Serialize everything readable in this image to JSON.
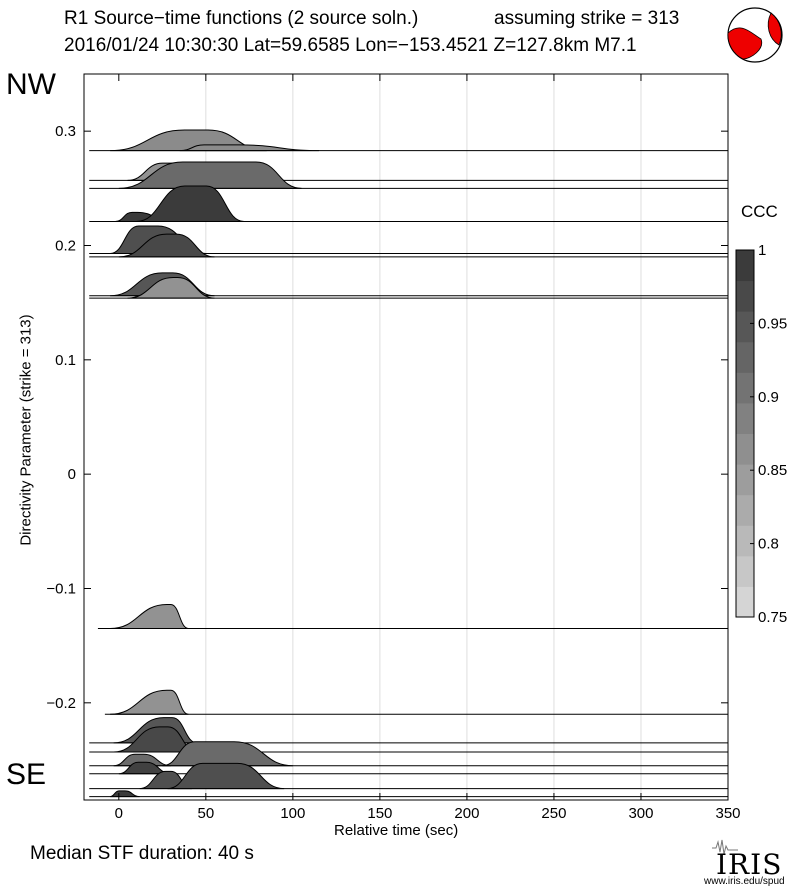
{
  "header": {
    "title": "R1 Source−time functions (2 source soln.)",
    "strike": "assuming strike = 313",
    "subtitle": "2016/01/24 10:30:30  Lat=59.6585 Lon=−153.4521  Z=127.8km  M7.1"
  },
  "labels": {
    "nw": "NW",
    "se": "SE",
    "median": "Median STF duration: 40 s"
  },
  "logo": {
    "name": "IRIS",
    "url": "www.iris.edu/spud"
  },
  "colorbar": {
    "title": "CCC",
    "ticks": [
      "1",
      "0.95",
      "0.9",
      "0.85",
      "0.8",
      "0.75"
    ],
    "vmin": 0.75,
    "vmax": 1.0,
    "levels": 12
  },
  "chart_data": {
    "type": "area",
    "title": "R1 Source−time functions (2 source soln.)",
    "xlabel": "Relative time (sec)",
    "ylabel": "Directivity Parameter (strike = 313)",
    "xlim": [
      -20,
      350
    ],
    "ylim": [
      -0.285,
      0.35
    ],
    "xticks": [
      0,
      50,
      100,
      150,
      200,
      250,
      300,
      350
    ],
    "yticks": [
      0.3,
      0.2,
      0.1,
      0,
      -0.1,
      -0.2
    ],
    "ytick_labels": [
      "0.3",
      "0.2",
      "0.1",
      "0",
      "−0.1",
      "−0.2"
    ],
    "grid_x": true,
    "traces": [
      {
        "y": 0.283,
        "x0": -17,
        "ccc": 0.87,
        "pulses": [
          {
            "t0": -5,
            "t1": 85,
            "h": 0.018,
            "peak": 0.55,
            "flat": 0.15
          },
          {
            "t0": 35,
            "t1": 115,
            "h": 0.005,
            "peak": 0.3,
            "flat": 0.25
          }
        ]
      },
      {
        "y": 0.257,
        "x0": -17,
        "ccc": 0.86,
        "pulses": [
          {
            "t0": 5,
            "t1": 95,
            "h": 0.015,
            "peak": 0.35,
            "flat": 0.25
          }
        ]
      },
      {
        "y": 0.25,
        "x0": -17,
        "ccc": 0.92,
        "pulses": [
          {
            "t0": 0,
            "t1": 105,
            "h": 0.023,
            "peak": 0.55,
            "flat": 0.4
          }
        ]
      },
      {
        "y": 0.221,
        "x0": -17,
        "ccc": 0.99,
        "pulses": [
          {
            "t0": -2,
            "t1": 30,
            "h": 0.008,
            "peak": 0.35,
            "flat": 0.1
          },
          {
            "t0": 10,
            "t1": 72,
            "h": 0.031,
            "peak": 0.55,
            "flat": 0.2
          }
        ]
      },
      {
        "y": 0.193,
        "x0": -17,
        "ccc": 0.96,
        "pulses": [
          {
            "t0": -5,
            "t1": 50,
            "h": 0.024,
            "peak": 0.4,
            "flat": 0.2
          }
        ]
      },
      {
        "y": 0.19,
        "x0": -17,
        "ccc": 0.97,
        "pulses": [
          {
            "t0": 0,
            "t1": 55,
            "h": 0.02,
            "peak": 0.55,
            "flat": 0.1
          }
        ]
      },
      {
        "y": 0.156,
        "x0": -17,
        "ccc": 0.95,
        "pulses": [
          {
            "t0": -5,
            "t1": 55,
            "h": 0.02,
            "peak": 0.55,
            "flat": 0.1
          }
        ]
      },
      {
        "y": 0.154,
        "x0": -17,
        "ccc": 0.86,
        "pulses": [
          {
            "t0": 5,
            "t1": 55,
            "h": 0.018,
            "peak": 0.55,
            "flat": 0.05
          }
        ]
      },
      {
        "y": -0.135,
        "x0": -12,
        "ccc": 0.86,
        "pulses": [
          {
            "t0": -5,
            "t1": 40,
            "h": 0.021,
            "peak": 0.75,
            "flat": 0.05
          }
        ]
      },
      {
        "y": -0.21,
        "x0": -8,
        "ccc": 0.86,
        "pulses": [
          {
            "t0": -5,
            "t1": 40,
            "h": 0.021,
            "peak": 0.75,
            "flat": 0.05
          }
        ]
      },
      {
        "y": -0.235,
        "x0": -17,
        "ccc": 0.95,
        "pulses": [
          {
            "t0": -3,
            "t1": 45,
            "h": 0.022,
            "peak": 0.65,
            "flat": 0.1
          }
        ]
      },
      {
        "y": -0.243,
        "x0": -17,
        "ccc": 0.97,
        "pulses": [
          {
            "t0": -3,
            "t1": 45,
            "h": 0.022,
            "peak": 0.6,
            "flat": 0.1
          }
        ]
      },
      {
        "y": -0.255,
        "x0": -17,
        "ccc": 0.92,
        "pulses": [
          {
            "t0": -3,
            "t1": 30,
            "h": 0.01,
            "peak": 0.45,
            "flat": 0.15
          },
          {
            "t0": 25,
            "t1": 100,
            "h": 0.021,
            "peak": 0.4,
            "flat": 0.3
          }
        ]
      },
      {
        "y": -0.262,
        "x0": -17,
        "ccc": 0.98,
        "pulses": [
          {
            "t0": 0,
            "t1": 30,
            "h": 0.01,
            "peak": 0.45,
            "flat": 0.15
          }
        ]
      },
      {
        "y": -0.275,
        "x0": -17,
        "ccc": 0.96,
        "pulses": [
          {
            "t0": 12,
            "t1": 42,
            "h": 0.015,
            "peak": 0.55,
            "flat": 0.1
          },
          {
            "t0": 28,
            "t1": 95,
            "h": 0.022,
            "peak": 0.45,
            "flat": 0.3
          }
        ]
      },
      {
        "y": -0.282,
        "x0": -17,
        "ccc": 0.99,
        "pulses": [
          {
            "t0": -5,
            "t1": 12,
            "h": 0.005,
            "peak": 0.4,
            "flat": 0.2
          }
        ]
      }
    ]
  }
}
